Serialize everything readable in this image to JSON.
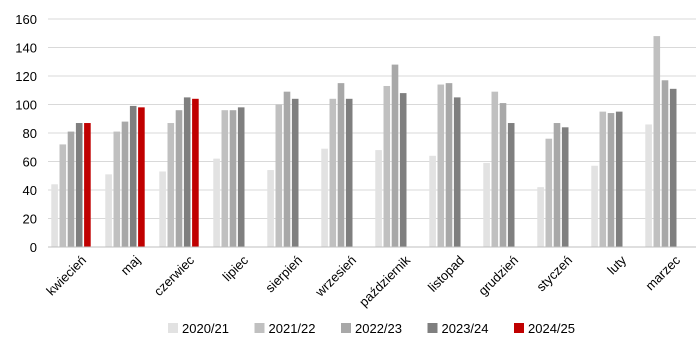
{
  "chart_data": {
    "type": "bar",
    "categories": [
      "kwiecień",
      "maj",
      "czerwiec",
      "lipiec",
      "sierpień",
      "wrzesień",
      "październik",
      "listopad",
      "grudzień",
      "styczeń",
      "luty",
      "marzec"
    ],
    "series": [
      {
        "name": "2020/21",
        "color": "#e2e2e2",
        "values": [
          44,
          51,
          53,
          62,
          54,
          69,
          68,
          64,
          59,
          42,
          57,
          86
        ]
      },
      {
        "name": "2021/22",
        "color": "#c0c0c0",
        "values": [
          72,
          81,
          87,
          96,
          100,
          104,
          113,
          114,
          109,
          76,
          95,
          148
        ]
      },
      {
        "name": "2022/23",
        "color": "#a8a8a8",
        "values": [
          81,
          88,
          96,
          96,
          109,
          115,
          128,
          115,
          101,
          87,
          94,
          117
        ]
      },
      {
        "name": "2023/24",
        "color": "#7f7f7f",
        "values": [
          87,
          99,
          105,
          98,
          104,
          104,
          108,
          105,
          87,
          84,
          95,
          111
        ]
      },
      {
        "name": "2024/25",
        "color": "#c00000",
        "values": [
          87,
          98,
          104,
          null,
          null,
          null,
          null,
          null,
          null,
          null,
          null,
          null
        ]
      }
    ],
    "ylim": [
      0,
      160
    ],
    "yticks": [
      0,
      20,
      40,
      60,
      80,
      100,
      120,
      140,
      160
    ],
    "grid": true,
    "legend": "bottom"
  }
}
